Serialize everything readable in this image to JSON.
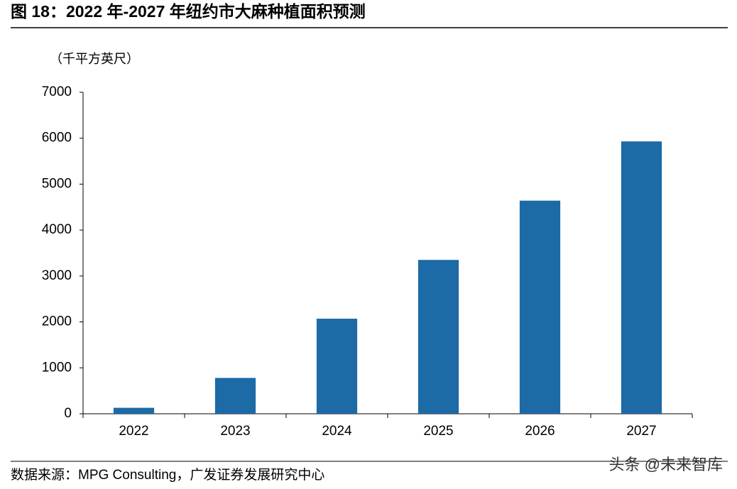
{
  "chart_data": {
    "type": "bar",
    "title": "图 18：2022 年-2027 年纽约市大麻种植面积预测",
    "y_axis_label": "（千平方英尺）",
    "source": "数据来源：MPG Consulting，广发证券发展研究中心",
    "watermark": "头条 @未来智库",
    "categories": [
      "2022",
      "2023",
      "2024",
      "2025",
      "2026",
      "2027"
    ],
    "values": [
      130,
      780,
      2070,
      3350,
      4640,
      5930
    ],
    "color": "#1c6aa6",
    "ylim": [
      0,
      7000
    ],
    "yticks": [
      0,
      1000,
      2000,
      3000,
      4000,
      5000,
      6000,
      7000
    ],
    "grid": false
  }
}
